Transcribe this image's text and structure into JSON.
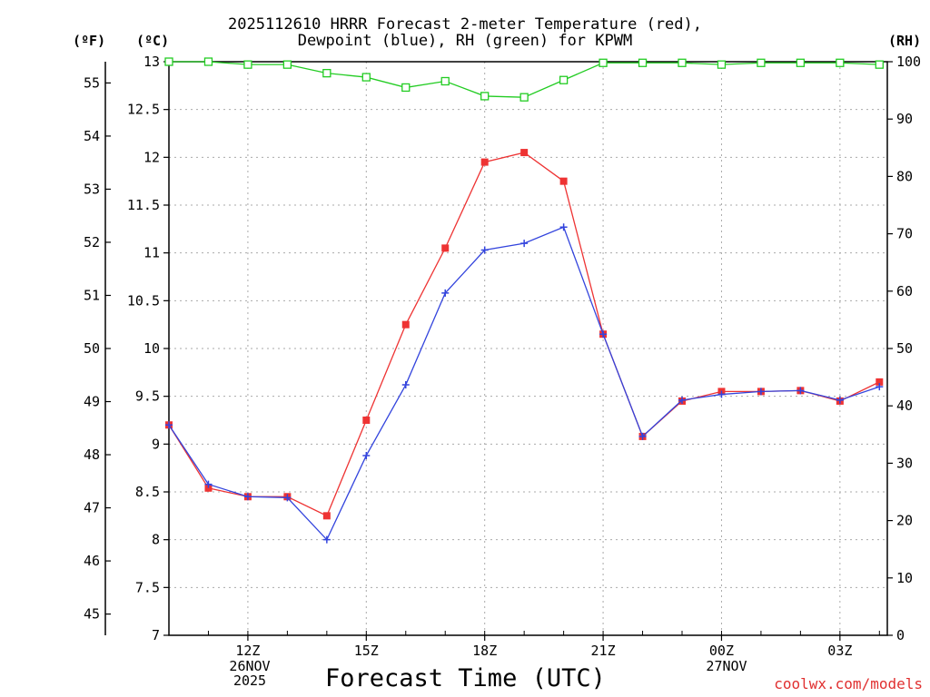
{
  "chart_data": {
    "type": "line",
    "title_line1": "2025112610 HRRR Forecast 2-meter Temperature (red),",
    "title_line2": "Dewpoint (blue), RH (green) for KPWM",
    "xlabel": "Forecast Time (UTC)",
    "watermark": "coolwx.com/models",
    "unit_f": "(ºF)",
    "unit_c": "(ºC)",
    "unit_rh": "(RH)",
    "date1": [
      "26NOV",
      "2025"
    ],
    "date2": [
      "27NOV"
    ],
    "x_hours": [
      10,
      11,
      12,
      13,
      14,
      15,
      16,
      17,
      18,
      19,
      20,
      21,
      22,
      23,
      24,
      25,
      26,
      27,
      28
    ],
    "xlim": [
      10,
      28.2
    ],
    "xticks": [
      {
        "h": 12,
        "label": "12Z"
      },
      {
        "h": 15,
        "label": "15Z"
      },
      {
        "h": 18,
        "label": "18Z"
      },
      {
        "h": 21,
        "label": "21Z"
      },
      {
        "h": 24,
        "label": "00Z"
      },
      {
        "h": 27,
        "label": "03Z"
      }
    ],
    "ylim_c": [
      7,
      13
    ],
    "yticks_c": [
      "7",
      "7.5",
      "8",
      "8.5",
      "9",
      "9.5",
      "10",
      "10.5",
      "11",
      "11.5",
      "12",
      "12.5",
      "13"
    ],
    "yticks_f": [
      "45",
      "46",
      "47",
      "48",
      "49",
      "50",
      "51",
      "52",
      "53",
      "54",
      "55"
    ],
    "ylim_rh": [
      0,
      100
    ],
    "yticks_rh": [
      "0",
      "10",
      "20",
      "30",
      "40",
      "50",
      "60",
      "70",
      "80",
      "90",
      "100"
    ],
    "series": [
      {
        "name": "Temperature",
        "axis": "c",
        "color": "#ee3333",
        "marker": "square-filled",
        "values": [
          9.2,
          8.54,
          8.45,
          8.45,
          8.25,
          9.25,
          10.25,
          11.05,
          11.95,
          12.05,
          11.75,
          10.15,
          9.08,
          9.45,
          9.55,
          9.55,
          9.56,
          9.45,
          9.65
        ]
      },
      {
        "name": "Dewpoint",
        "axis": "c",
        "color": "#3344dd",
        "marker": "plus",
        "values": [
          9.2,
          8.58,
          8.45,
          8.44,
          8.0,
          8.88,
          9.62,
          10.58,
          11.03,
          11.1,
          11.27,
          10.15,
          9.08,
          9.46,
          9.52,
          9.55,
          9.56,
          9.46,
          9.6
        ]
      },
      {
        "name": "RH",
        "axis": "rh",
        "color": "#22cc22",
        "marker": "square-open",
        "values": [
          100,
          100,
          99.5,
          99.5,
          98,
          97.3,
          95.5,
          96.6,
          94,
          93.8,
          96.8,
          99.8,
          99.8,
          99.8,
          99.5,
          99.8,
          99.8,
          99.8,
          99.5
        ]
      }
    ]
  }
}
